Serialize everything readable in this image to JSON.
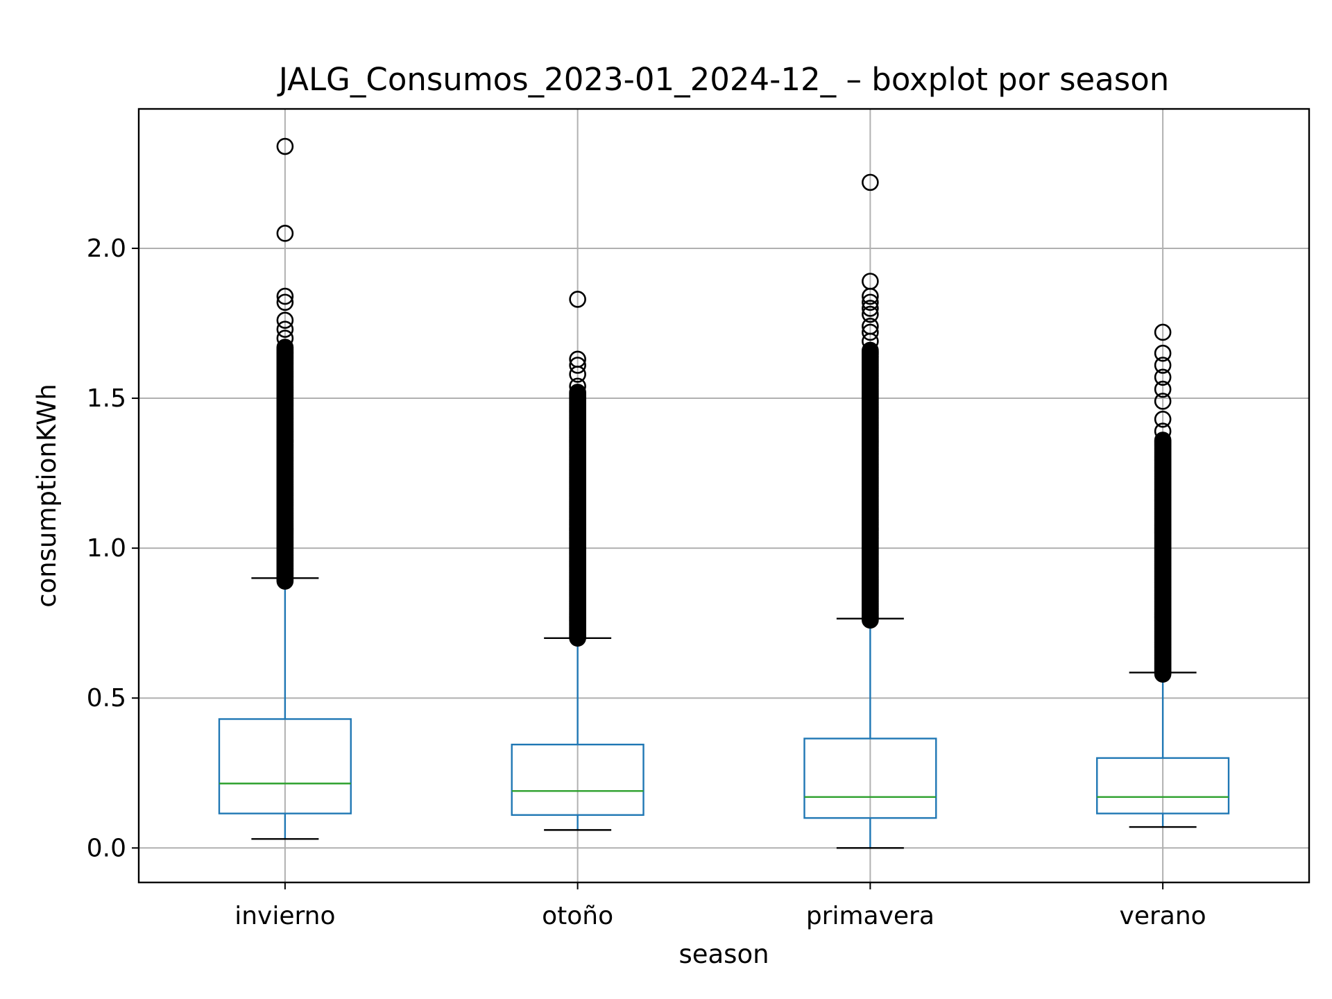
{
  "chart_data": {
    "type": "boxplot",
    "title": "JALG_Consumos_2023-01_2024-12_ – boxplot por season",
    "xlabel": "season",
    "ylabel": "consumptionKWh",
    "ylim": [
      -0.115,
      2.465
    ],
    "yticks": [
      0.0,
      0.5,
      1.0,
      1.5,
      2.0
    ],
    "ytick_labels": [
      "0.0",
      "0.5",
      "1.0",
      "1.5",
      "2.0"
    ],
    "grid": true,
    "categories": [
      "invierno",
      "otoño",
      "primavera",
      "verano"
    ],
    "colors": {
      "box": "#1f77b4",
      "median": "#2ca02c",
      "whisker_cap": "#000000",
      "grid": "#b0b0b0",
      "flier": "#000000"
    },
    "boxes": [
      {
        "category": "invierno",
        "whislo": 0.03,
        "q1": 0.115,
        "median": 0.215,
        "q3": 0.43,
        "whishi": 0.9,
        "fliers_dense_range": [
          0.89,
          1.67
        ],
        "fliers": [
          1.7,
          1.73,
          1.76,
          1.82,
          1.84,
          2.05,
          2.34
        ]
      },
      {
        "category": "otoño",
        "whislo": 0.06,
        "q1": 0.11,
        "median": 0.19,
        "q3": 0.345,
        "whishi": 0.7,
        "fliers_dense_range": [
          0.7,
          1.52
        ],
        "fliers": [
          1.54,
          1.58,
          1.61,
          1.63,
          1.83
        ]
      },
      {
        "category": "primavera",
        "whislo": 0.0,
        "q1": 0.1,
        "median": 0.17,
        "q3": 0.365,
        "whishi": 0.765,
        "fliers_dense_range": [
          0.76,
          1.66
        ],
        "fliers": [
          1.69,
          1.72,
          1.74,
          1.78,
          1.8,
          1.82,
          1.84,
          1.89,
          2.22
        ]
      },
      {
        "category": "verano",
        "whislo": 0.07,
        "q1": 0.115,
        "median": 0.17,
        "q3": 0.3,
        "whishi": 0.585,
        "fliers_dense_range": [
          0.58,
          1.36
        ],
        "fliers": [
          1.39,
          1.43,
          1.49,
          1.53,
          1.57,
          1.61,
          1.65,
          1.72
        ]
      }
    ]
  }
}
